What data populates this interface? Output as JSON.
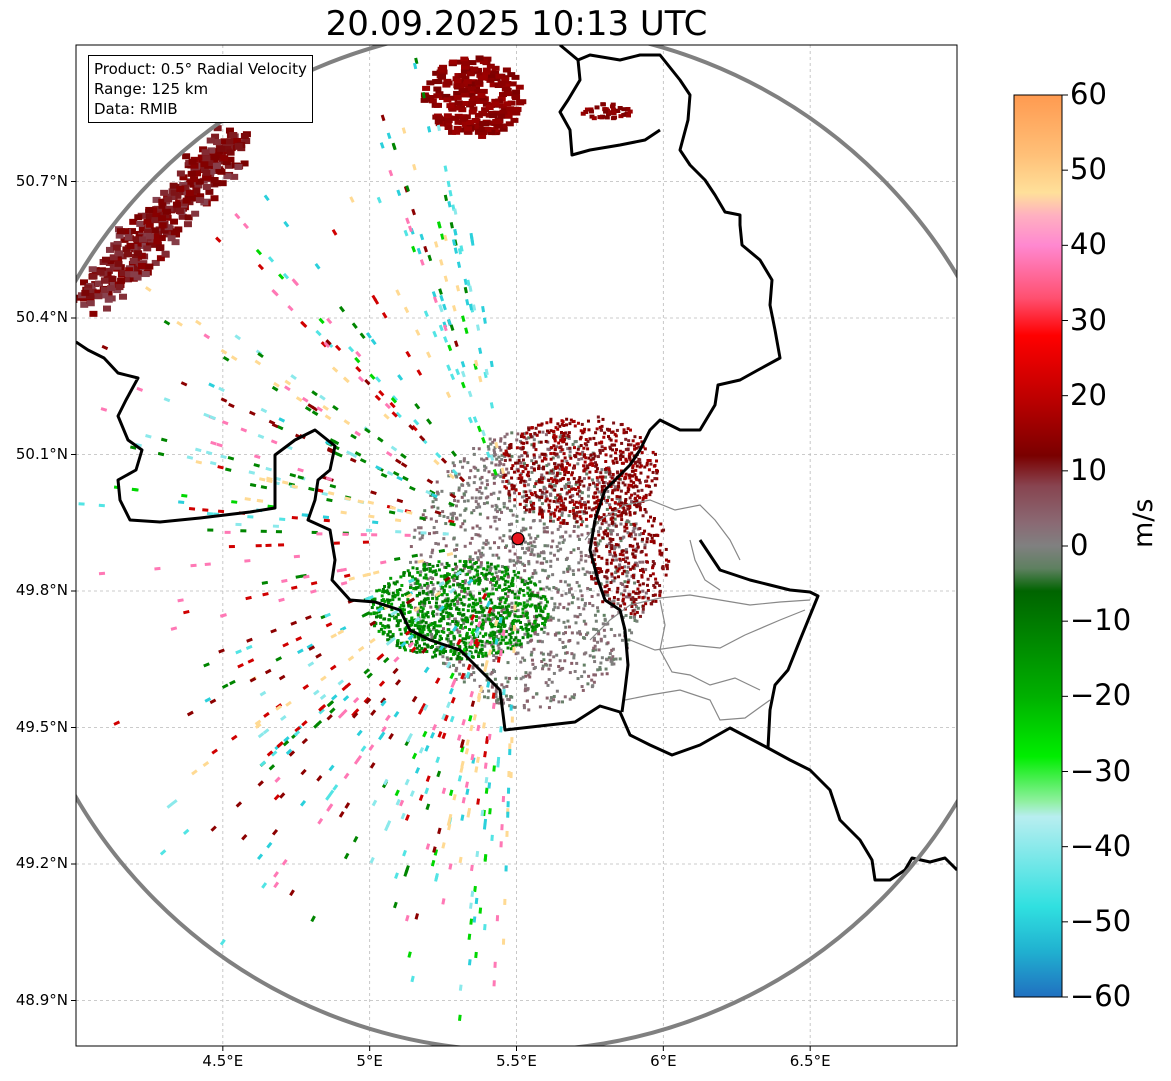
{
  "title": "20.09.2025 10:13 UTC",
  "info_box": {
    "product": "Product: 0.5° Radial Velocity",
    "range": "Range: 125 km",
    "source": "Data: RMIB"
  },
  "radar": {
    "lon": 5.505,
    "lat": 49.915,
    "marker_color": "#e8141c",
    "range_ring_color": "#808080"
  },
  "axes": {
    "lon_range": [
      4.0,
      7.0
    ],
    "lat_range": [
      48.8,
      51.0
    ],
    "x_ticks": [
      {
        "value": 4.5,
        "label": "4.5°E"
      },
      {
        "value": 5.0,
        "label": "5°E"
      },
      {
        "value": 5.5,
        "label": "5.5°E"
      },
      {
        "value": 6.0,
        "label": "6°E"
      },
      {
        "value": 6.5,
        "label": "6.5°E"
      }
    ],
    "y_ticks": [
      {
        "value": 50.7,
        "label": "50.7°N"
      },
      {
        "value": 50.4,
        "label": "50.4°N"
      },
      {
        "value": 50.1,
        "label": "50.1°N"
      },
      {
        "value": 49.8,
        "label": "49.8°N"
      },
      {
        "value": 49.5,
        "label": "49.5°N"
      },
      {
        "value": 49.2,
        "label": "49.2°N"
      },
      {
        "value": 48.9,
        "label": "48.9°N"
      }
    ],
    "grid": true
  },
  "colorbar": {
    "label": "m/s",
    "range": [
      -60,
      60
    ],
    "ticks": [
      {
        "value": 60,
        "label": "60"
      },
      {
        "value": 50,
        "label": "50"
      },
      {
        "value": 40,
        "label": "40"
      },
      {
        "value": 30,
        "label": "30"
      },
      {
        "value": 20,
        "label": "20"
      },
      {
        "value": 10,
        "label": "10"
      },
      {
        "value": 0,
        "label": "0"
      },
      {
        "value": -10,
        "label": "−10"
      },
      {
        "value": -20,
        "label": "−20"
      },
      {
        "value": -30,
        "label": "−30"
      },
      {
        "value": -40,
        "label": "−40"
      },
      {
        "value": -50,
        "label": "−50"
      },
      {
        "value": -60,
        "label": "−60"
      }
    ],
    "stops": [
      {
        "v": 60,
        "c": "#ff9a50"
      },
      {
        "v": 52,
        "c": "#ffc078"
      },
      {
        "v": 47,
        "c": "#ffe09a"
      },
      {
        "v": 44,
        "c": "#ffb0c0"
      },
      {
        "v": 40,
        "c": "#ff88d0"
      },
      {
        "v": 33,
        "c": "#ff5070"
      },
      {
        "v": 28,
        "c": "#ff0000"
      },
      {
        "v": 20,
        "c": "#c00000"
      },
      {
        "v": 12,
        "c": "#7a0000"
      },
      {
        "v": 8,
        "c": "#884450"
      },
      {
        "v": 3,
        "c": "#8a6a74"
      },
      {
        "v": 0,
        "c": "#808080"
      },
      {
        "v": -3,
        "c": "#5e8060"
      },
      {
        "v": -6,
        "c": "#006400"
      },
      {
        "v": -20,
        "c": "#00b000"
      },
      {
        "v": -28,
        "c": "#00ee00"
      },
      {
        "v": -34,
        "c": "#90f0a0"
      },
      {
        "v": -36,
        "c": "#b8eef0"
      },
      {
        "v": -48,
        "c": "#30e0e0"
      },
      {
        "v": -54,
        "c": "#20b0d0"
      },
      {
        "v": -60,
        "c": "#2070c0"
      }
    ]
  }
}
